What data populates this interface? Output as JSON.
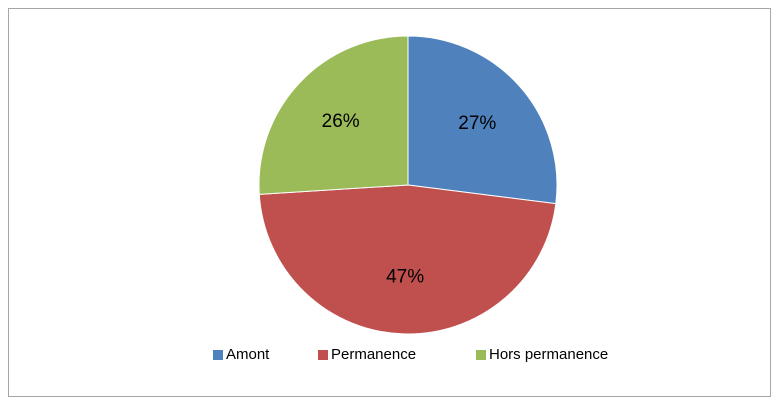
{
  "chart_data": {
    "type": "pie",
    "categories": [
      "Amont",
      "Permanence",
      "Hors permanence"
    ],
    "values": [
      27,
      47,
      26
    ],
    "value_labels": [
      "27%",
      "47%",
      "26%"
    ],
    "colors": [
      "#4f81bd",
      "#c0504d",
      "#9bbb59"
    ],
    "legend": "bottom"
  }
}
